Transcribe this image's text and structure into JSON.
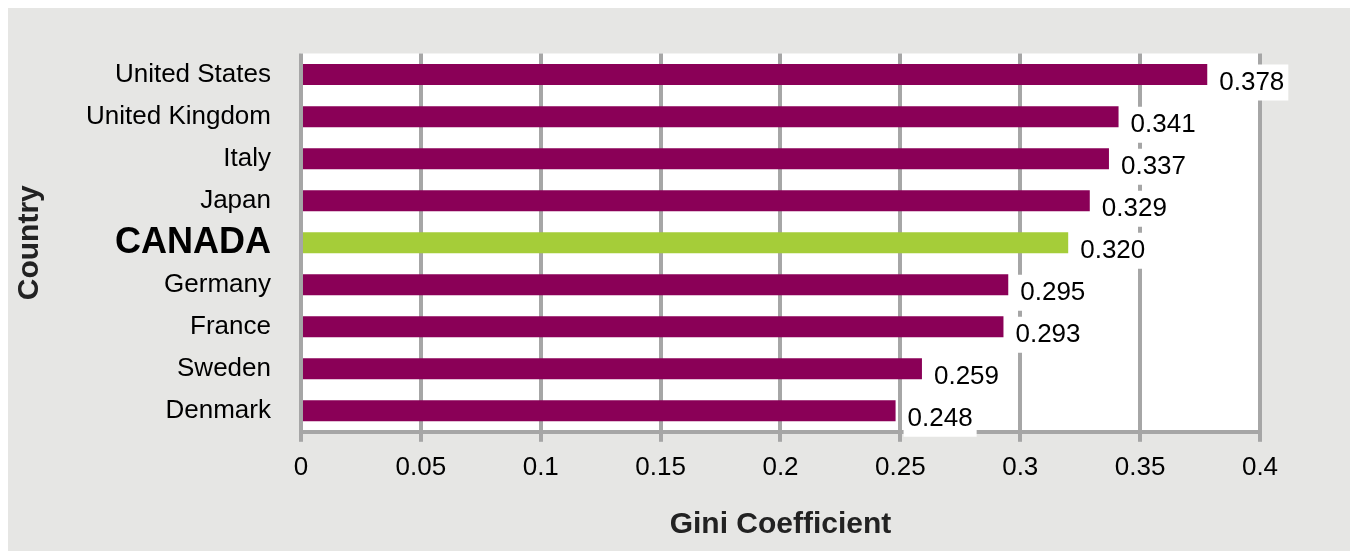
{
  "chart_data": {
    "type": "bar",
    "orientation": "horizontal",
    "xlabel": "Gini Coefficient",
    "ylabel": "Country",
    "categories": [
      "United States",
      "United Kingdom",
      "Italy",
      "Japan",
      "CANADA",
      "Germany",
      "France",
      "Sweden",
      "Denmark"
    ],
    "values": [
      0.378,
      0.341,
      0.337,
      0.329,
      0.32,
      0.295,
      0.293,
      0.259,
      0.248
    ],
    "value_labels": [
      "0.378",
      "0.341",
      "0.337",
      "0.329",
      "0.320",
      "0.295",
      "0.293",
      "0.259",
      "0.248"
    ],
    "colors": [
      "#8a0057",
      "#8a0057",
      "#8a0057",
      "#8a0057",
      "#a5cd39",
      "#8a0057",
      "#8a0057",
      "#8a0057",
      "#8a0057"
    ],
    "xlim": [
      0,
      0.4
    ],
    "xticks": [
      0,
      0.05,
      0.1,
      0.15,
      0.2,
      0.25,
      0.3,
      0.35,
      0.4
    ],
    "grid": "x",
    "legend": false
  }
}
